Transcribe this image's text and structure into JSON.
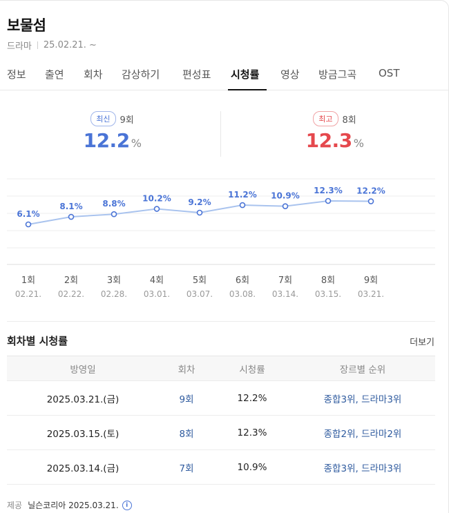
{
  "header": {
    "title": "보물섬",
    "genre": "드라마",
    "date": "25.02.21. ~"
  },
  "tabs": [
    {
      "label": "정보"
    },
    {
      "label": "출연"
    },
    {
      "label": "회차"
    },
    {
      "label": "감상하기"
    },
    {
      "label": "편성표"
    },
    {
      "label": "시청률",
      "active": true
    },
    {
      "label": "영상"
    },
    {
      "label": "방금그곡"
    },
    {
      "label": "OST"
    }
  ],
  "summary": {
    "latest": {
      "badge": "최신",
      "episode": "9회",
      "value": "12.2",
      "unit": "%"
    },
    "best": {
      "badge": "최고",
      "episode": "8회",
      "value": "12.3",
      "unit": "%"
    }
  },
  "chart_data": {
    "type": "line",
    "categories": [
      "1회",
      "2회",
      "3회",
      "4회",
      "5회",
      "6회",
      "7회",
      "8회",
      "9회"
    ],
    "dates": [
      "02.21.",
      "02.22.",
      "02.28.",
      "03.01.",
      "03.07.",
      "03.08.",
      "03.14.",
      "03.15.",
      "03.21."
    ],
    "values": [
      6.1,
      8.1,
      8.8,
      10.2,
      9.2,
      11.2,
      10.9,
      12.3,
      12.2
    ],
    "labels": [
      "6.1%",
      "8.1%",
      "8.8%",
      "10.2%",
      "9.2%",
      "11.2%",
      "10.9%",
      "12.3%",
      "12.2%"
    ],
    "grid": true,
    "line_color": "#a9c3ee",
    "label_color": "#4a74d6"
  },
  "ratings_section": {
    "title": "회차별 시청률",
    "more_label": "더보기",
    "columns": [
      "방영일",
      "회차",
      "시청률",
      "장르별 순위"
    ],
    "rows": [
      {
        "date": "2025.03.21.(금)",
        "episode": "9회",
        "rating": "12.2%",
        "rank": "종합3위, 드라마3위"
      },
      {
        "date": "2025.03.15.(토)",
        "episode": "8회",
        "rating": "12.3%",
        "rank": "종합2위, 드라마2위"
      },
      {
        "date": "2025.03.14.(금)",
        "episode": "7회",
        "rating": "10.9%",
        "rank": "종합3위, 드라마3위"
      }
    ]
  },
  "footer": {
    "label": "제공",
    "source": "닐슨코리아 2025.03.21.",
    "info_icon": "i"
  },
  "colors": {
    "accent_blue": "#4a74d6",
    "accent_red": "#e5484d",
    "link": "#2e5a9e"
  }
}
